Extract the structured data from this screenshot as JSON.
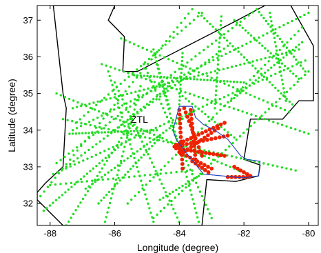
{
  "chart_data": {
    "type": "scatter",
    "title": "",
    "xlabel": "Longitude (degree)",
    "ylabel": "Latitude (degree)",
    "xlim": [
      -88.4,
      -79.7
    ],
    "ylim": [
      31.4,
      37.4
    ],
    "xticks": [
      -88,
      -86,
      -84,
      -82,
      -80
    ],
    "yticks": [
      32,
      33,
      34,
      35,
      36,
      37
    ],
    "grid": false,
    "annotations": [
      {
        "text": "ZTL",
        "x": -85.5,
        "y": 34.2
      }
    ],
    "colors": {
      "airspace_boundary": "#000000",
      "region_boundary": "#1f3fbf",
      "series_a": "#22dd22",
      "series_b": "#ee2200"
    },
    "airspace_boundary": [
      [
        -87.9,
        37.4
      ],
      [
        -86.0,
        37.4
      ],
      [
        -86.2,
        37.0
      ],
      [
        -85.7,
        36.55
      ],
      [
        -85.75,
        35.6
      ],
      [
        -85.3,
        35.6
      ],
      [
        -82.2,
        37.0
      ],
      [
        -81.35,
        37.4
      ],
      [
        -80.55,
        37.4
      ],
      [
        -79.85,
        36.3
      ],
      [
        -79.85,
        34.8
      ],
      [
        -80.3,
        34.8
      ],
      [
        -80.8,
        34.3
      ],
      [
        -81.8,
        34.3
      ],
      [
        -82.0,
        33.2
      ],
      [
        -81.5,
        33.05
      ],
      [
        -81.55,
        32.75
      ],
      [
        -82.25,
        32.6
      ],
      [
        -83.15,
        32.65
      ],
      [
        -83.3,
        31.4
      ],
      [
        -87.6,
        31.4
      ],
      [
        -88.4,
        32.1
      ],
      [
        -88.4,
        32.3
      ],
      [
        -88.15,
        32.55
      ],
      [
        -87.6,
        33.0
      ],
      [
        -87.5,
        34.6
      ],
      [
        -87.6,
        35.0
      ],
      [
        -87.9,
        37.4
      ]
    ],
    "region_boundary": [
      [
        -84.0,
        34.65
      ],
      [
        -83.6,
        34.65
      ],
      [
        -83.5,
        34.35
      ],
      [
        -83.25,
        34.15
      ],
      [
        -82.9,
        34.0
      ],
      [
        -82.5,
        33.75
      ],
      [
        -82.1,
        33.3
      ],
      [
        -81.9,
        33.2
      ],
      [
        -81.5,
        33.15
      ],
      [
        -81.55,
        32.75
      ],
      [
        -82.05,
        32.7
      ],
      [
        -82.4,
        32.73
      ],
      [
        -83.25,
        32.8
      ],
      [
        -83.8,
        33.4
      ],
      [
        -84.1,
        33.75
      ],
      [
        -84.2,
        34.0
      ],
      [
        -84.0,
        34.65
      ]
    ],
    "series": [
      {
        "marker": "dot",
        "color": "#22dd22",
        "tracks": [
          {
            "from": [
              -88.3,
              32.2
            ],
            "to": [
              -83.6,
              37.3
            ],
            "n": 42
          },
          {
            "from": [
              -87.8,
              33.1
            ],
            "to": [
              -81.6,
              37.3
            ],
            "n": 50
          },
          {
            "from": [
              -87.2,
              34.2
            ],
            "to": [
              -83.3,
              37.2
            ],
            "n": 32
          },
          {
            "from": [
              -85.6,
              32.0
            ],
            "to": [
              -80.2,
              36.8
            ],
            "n": 48
          },
          {
            "from": [
              -84.8,
              31.6
            ],
            "to": [
              -80.0,
              35.6
            ],
            "n": 44
          },
          {
            "from": [
              -87.9,
              32.8
            ],
            "to": [
              -80.1,
              35.9
            ],
            "n": 60
          },
          {
            "from": [
              -87.3,
              34.6
            ],
            "to": [
              -80.3,
              36.2
            ],
            "n": 55
          },
          {
            "from": [
              -87.3,
              34.0
            ],
            "to": [
              -80.0,
              37.2
            ],
            "n": 58
          },
          {
            "from": [
              -86.4,
              35.8
            ],
            "to": [
              -80.0,
              33.9
            ],
            "n": 48
          },
          {
            "from": [
              -87.6,
              34.3
            ],
            "to": [
              -80.4,
              32.9
            ],
            "n": 52
          },
          {
            "from": [
              -87.8,
              35.0
            ],
            "to": [
              -81.9,
              32.8
            ],
            "n": 46
          },
          {
            "from": [
              -85.8,
              36.5
            ],
            "to": [
              -80.6,
              34.5
            ],
            "n": 40
          },
          {
            "from": [
              -87.5,
              33.0
            ],
            "to": [
              -82.5,
              36.3
            ],
            "n": 44
          },
          {
            "from": [
              -88.0,
              32.5
            ],
            "to": [
              -83.6,
              32.9
            ],
            "n": 28
          },
          {
            "from": [
              -85.1,
              35.8
            ],
            "to": [
              -83.0,
              31.6
            ],
            "n": 36
          },
          {
            "from": [
              -86.2,
              35.6
            ],
            "to": [
              -84.8,
              31.5
            ],
            "n": 34
          },
          {
            "from": [
              -85.5,
              34.2
            ],
            "to": [
              -87.5,
              31.4
            ],
            "n": 28
          },
          {
            "from": [
              -85.2,
              35.2
            ],
            "to": [
              -86.3,
              31.5
            ],
            "n": 30
          },
          {
            "from": [
              -84.7,
              35.8
            ],
            "to": [
              -83.4,
              31.5
            ],
            "n": 36
          },
          {
            "from": [
              -86.0,
              35.3
            ],
            "to": [
              -84.0,
              31.5
            ],
            "n": 34
          },
          {
            "from": [
              -83.4,
              37.2
            ],
            "to": [
              -80.5,
              34.7
            ],
            "n": 34
          },
          {
            "from": [
              -82.3,
              37.0
            ],
            "to": [
              -80.3,
              35.4
            ],
            "n": 24
          },
          {
            "from": [
              -81.6,
              37.3
            ],
            "to": [
              -80.1,
              35.6
            ],
            "n": 22
          },
          {
            "from": [
              -82.7,
              37.1
            ],
            "to": [
              -82.9,
              34.6
            ],
            "n": 22
          },
          {
            "from": [
              -81.2,
              37.2
            ],
            "to": [
              -80.7,
              34.8
            ],
            "n": 22
          },
          {
            "from": [
              -84.8,
              36.2
            ],
            "to": [
              -84.3,
              34.6
            ],
            "n": 16
          },
          {
            "from": [
              -83.9,
              36.1
            ],
            "to": [
              -84.0,
              34.7
            ],
            "n": 14
          },
          {
            "from": [
              -85.4,
              35.5
            ],
            "to": [
              -82.0,
              35.3
            ],
            "n": 34
          },
          {
            "from": [
              -87.4,
              33.9
            ],
            "to": [
              -84.7,
              34.0
            ],
            "n": 28
          },
          {
            "from": [
              -86.9,
              32.4
            ],
            "to": [
              -83.6,
              34.5
            ],
            "n": 34
          },
          {
            "from": [
              -84.6,
              32.1
            ],
            "to": [
              -83.3,
              32.8
            ],
            "n": 14
          },
          {
            "from": [
              -82.4,
              34.8
            ],
            "to": [
              -80.2,
              36.4
            ],
            "n": 24
          },
          {
            "from": [
              -86.5,
              32.0
            ],
            "to": [
              -84.6,
              33.8
            ],
            "n": 24
          },
          {
            "from": [
              -88.2,
              31.8
            ],
            "to": [
              -85.8,
              33.6
            ],
            "n": 26
          },
          {
            "from": [
              -84.0,
              35.0
            ],
            "to": [
              -82.3,
              33.8
            ],
            "n": 18
          },
          {
            "from": [
              -86.0,
              34.0
            ],
            "to": [
              -84.3,
              35.2
            ],
            "n": 18
          }
        ]
      },
      {
        "marker": "dot",
        "color": "#ee2200",
        "tracks": [
          {
            "from": [
              -84.0,
              34.55
            ],
            "to": [
              -83.9,
              32.95
            ],
            "n": 14
          },
          {
            "from": [
              -83.85,
              34.6
            ],
            "to": [
              -83.3,
              33.3
            ],
            "n": 12
          },
          {
            "from": [
              -83.65,
              34.55
            ],
            "to": [
              -83.5,
              33.2
            ],
            "n": 12
          },
          {
            "from": [
              -84.1,
              33.6
            ],
            "to": [
              -82.6,
              34.2
            ],
            "n": 14
          },
          {
            "from": [
              -84.15,
              33.55
            ],
            "to": [
              -82.5,
              33.85
            ],
            "n": 14
          },
          {
            "from": [
              -84.1,
              33.5
            ],
            "to": [
              -82.6,
              33.3
            ],
            "n": 14
          },
          {
            "from": [
              -84.0,
              33.4
            ],
            "to": [
              -83.0,
              32.95
            ],
            "n": 10
          },
          {
            "from": [
              -83.95,
              33.35
            ],
            "to": [
              -82.8,
              34.05
            ],
            "n": 12
          },
          {
            "from": [
              -82.3,
              33.0
            ],
            "to": [
              -81.8,
              32.75
            ],
            "n": 6
          },
          {
            "from": [
              -82.5,
              32.72
            ],
            "to": [
              -81.9,
              32.72
            ],
            "n": 6
          },
          {
            "from": [
              -83.6,
              33.15
            ],
            "to": [
              -83.1,
              32.85
            ],
            "n": 6
          }
        ]
      }
    ]
  }
}
